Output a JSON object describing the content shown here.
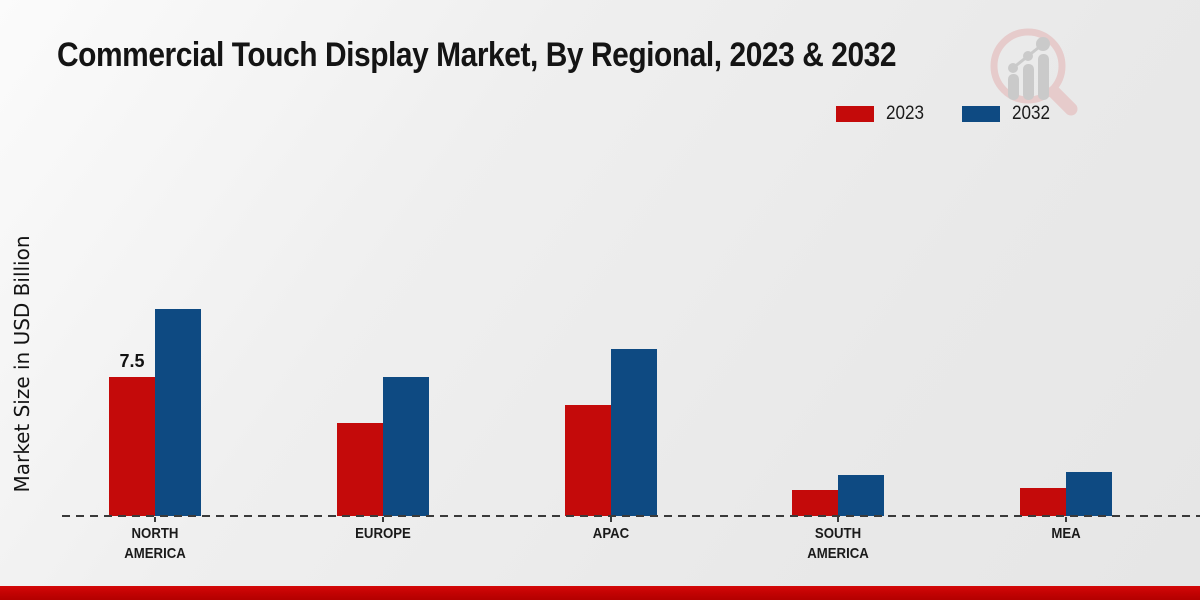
{
  "page": {
    "title": "Commercial Touch Display Market, By Regional, 2023 & 2032",
    "ylabel": "Market Size in USD Billion"
  },
  "legend": {
    "items": [
      {
        "label": "2023",
        "color": "#c40a0a"
      },
      {
        "label": "2032",
        "color": "#0e4a82"
      }
    ]
  },
  "colors": {
    "series_2023": "#c40a0a",
    "series_2032": "#0e4a82",
    "bottom_bar": "#c00404",
    "axis": "#3a3a3a",
    "background": "#ebebeb",
    "watermark_ring": "#e6caca",
    "watermark_bars": "#c9c9c9"
  },
  "watermark": {
    "icon": "magnifier-bar-chart-logo"
  },
  "chart_data": {
    "type": "bar",
    "title": "Commercial Touch Display Market, By Regional, 2023 & 2032",
    "xlabel": "",
    "ylabel": "Market Size in USD Billion",
    "categories": [
      "NORTH AMERICA",
      "EUROPE",
      "APAC",
      "SOUTH AMERICA",
      "MEA"
    ],
    "series": [
      {
        "name": "2023",
        "color": "#c40a0a",
        "values": [
          7.5,
          5.0,
          6.0,
          1.4,
          1.5
        ]
      },
      {
        "name": "2032",
        "color": "#0e4a82",
        "values": [
          11.2,
          7.5,
          9.0,
          2.2,
          2.4
        ]
      }
    ],
    "ylim": [
      0,
      12
    ],
    "grid": false,
    "legend_position": "top-right",
    "baseline_style": "dashed",
    "data_labels": [
      {
        "category": "NORTH AMERICA",
        "series": "2023",
        "label": "7.5"
      }
    ]
  }
}
